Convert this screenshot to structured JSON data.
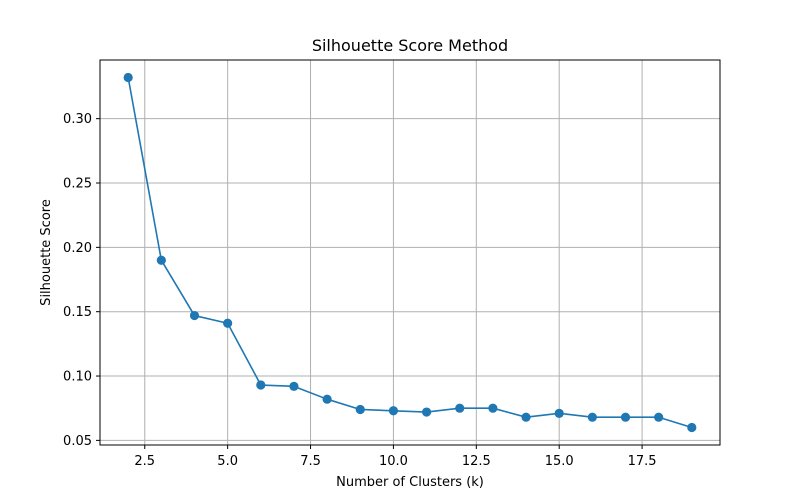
{
  "chart_data": {
    "type": "line",
    "title": "Silhouette Score Method",
    "xlabel": "Number of Clusters (k)",
    "ylabel": "Silhouette Score",
    "x": [
      2,
      3,
      4,
      5,
      6,
      7,
      8,
      9,
      10,
      11,
      12,
      13,
      14,
      15,
      16,
      17,
      18,
      19
    ],
    "series": [
      {
        "values": [
          0.332,
          0.19,
          0.147,
          0.141,
          0.093,
          0.092,
          0.082,
          0.074,
          0.073,
          0.072,
          0.075,
          0.075,
          0.068,
          0.071,
          0.068,
          0.068,
          0.068,
          0.06
        ],
        "color": "#1f77b4",
        "marker": "circle"
      }
    ],
    "xlim": [
      1.15,
      19.85
    ],
    "ylim": [
      0.0464,
      0.3456
    ],
    "xticks": [
      2.5,
      5.0,
      7.5,
      10.0,
      12.5,
      15.0,
      17.5
    ],
    "xtick_labels": [
      "2.5",
      "5.0",
      "7.5",
      "10.0",
      "12.5",
      "15.0",
      "17.5"
    ],
    "yticks": [
      0.05,
      0.1,
      0.15,
      0.2,
      0.25,
      0.3
    ],
    "ytick_labels": [
      "0.05",
      "0.10",
      "0.15",
      "0.20",
      "0.25",
      "0.30"
    ],
    "grid": true
  }
}
